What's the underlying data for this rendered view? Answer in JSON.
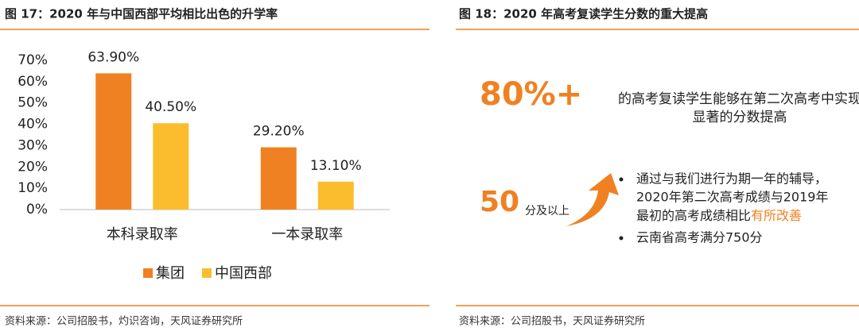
{
  "left": {
    "title": "图 17：2020 年与中国西部平均相比出色的升学率",
    "source": "资料来源：公司招股书，灼识咨询，天风证券研究所"
  },
  "chart_data": {
    "type": "bar",
    "categories": [
      "本科录取率",
      "一本录取率"
    ],
    "series": [
      {
        "name": "集团",
        "color": "#f08122",
        "values": [
          63.9,
          29.2
        ],
        "value_labels": [
          "63.90%",
          "29.20%"
        ]
      },
      {
        "name": "中国西部",
        "color": "#fbbd2e",
        "values": [
          40.5,
          13.1
        ],
        "value_labels": [
          "40.50%",
          "13.10%"
        ]
      }
    ],
    "ylim": [
      0,
      70
    ],
    "yticks": [
      {
        "value": 0,
        "label": "0%"
      },
      {
        "value": 10,
        "label": "10%"
      },
      {
        "value": 20,
        "label": "20%"
      },
      {
        "value": 30,
        "label": "30%"
      },
      {
        "value": 40,
        "label": "40%"
      },
      {
        "value": 50,
        "label": "50%"
      },
      {
        "value": 60,
        "label": "60%"
      },
      {
        "value": 70,
        "label": "70%"
      }
    ],
    "grid": false,
    "legend": "bottom"
  },
  "right": {
    "title": "图 18：2020 年高考复读学生分数的重大提高",
    "big_stat": "80%+",
    "big_text": [
      "的高考复读学生能够在第二次高考中实现",
      "显著的分数提高"
    ],
    "score_stat": "50",
    "score_text": "分及以上",
    "bullet1": [
      "通过与我们进行为期一年的辅导，",
      "2020年第二次高考成绩与2019年",
      "最初的高考成绩相比"
    ],
    "bullet1_highlight": "有所改善",
    "bullet2": "云南省高考满分750分",
    "source": "资料来源：公司招股书，天风证券研究所"
  }
}
